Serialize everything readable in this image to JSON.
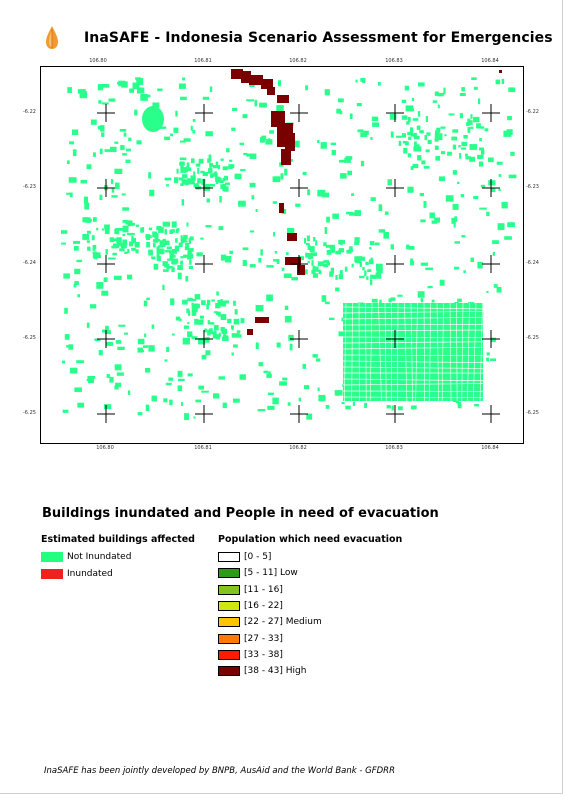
{
  "header": {
    "title": "InaSAFE - Indonesia Scenario Assessment for Emergencies",
    "logo_icon": "inasafe-logo-icon"
  },
  "map": {
    "x_ticks": [
      "106.80",
      "106.81",
      "106.82",
      "106.83",
      "106.84"
    ],
    "y_ticks": [
      "-6.22",
      "-6.23",
      "-6.24",
      "-6.25",
      "-6.25"
    ],
    "colors": {
      "not_inundated": "#29ff8b",
      "inundated": "#7a0000",
      "grid_cross": "#000000"
    }
  },
  "legend": {
    "title": "Buildings inundated and People in need of evacuation",
    "buildings": {
      "heading": "Estimated buildings affected",
      "items": [
        {
          "label": "Not Inundated",
          "color": "#22ff80"
        },
        {
          "label": "Inundated",
          "color": "#ee2222"
        }
      ]
    },
    "population": {
      "heading": "Population which need evacuation",
      "items": [
        {
          "label": "[0 - 5]",
          "color": "#ffffff"
        },
        {
          "label": "[5 - 11] Low",
          "color": "#2e9a1a"
        },
        {
          "label": "[11 - 16]",
          "color": "#85c41a"
        },
        {
          "label": "[16 - 22]",
          "color": "#cfe612"
        },
        {
          "label": "[22 - 27] Medium",
          "color": "#ffc400"
        },
        {
          "label": "[27 - 33]",
          "color": "#ff7a00"
        },
        {
          "label": "[33 - 38]",
          "color": "#ff1a00"
        },
        {
          "label": "[38 - 43] High",
          "color": "#7a0000"
        }
      ]
    }
  },
  "footer": {
    "credit": "InaSAFE has been jointly developed by BNPB, AusAid and the World Bank - GFDRR"
  }
}
